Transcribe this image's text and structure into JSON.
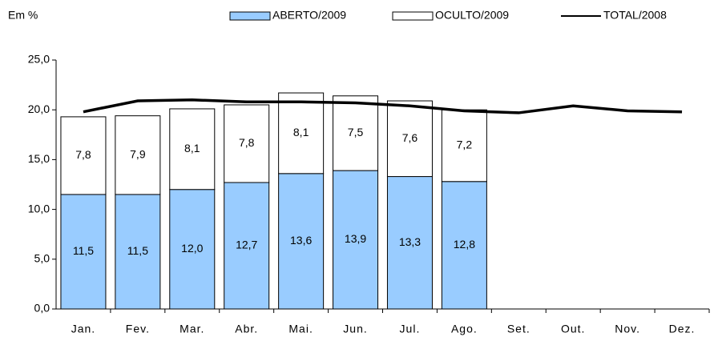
{
  "chart_data": {
    "type": "bar",
    "unit_label": "Em %",
    "categories": [
      "Jan.",
      "Fev.",
      "Mar.",
      "Abr.",
      "Mai.",
      "Jun.",
      "Jul.",
      "Ago.",
      "Set.",
      "Out.",
      "Nov.",
      "Dez."
    ],
    "series": [
      {
        "name": "ABERTO/2009",
        "type": "bar",
        "color": "#99ccff",
        "values": [
          11.5,
          11.5,
          12.0,
          12.7,
          13.6,
          13.9,
          13.3,
          12.8,
          null,
          null,
          null,
          null
        ],
        "value_labels": [
          "11,5",
          "11,5",
          "12,0",
          "12,7",
          "13,6",
          "13,9",
          "13,3",
          "12,8",
          null,
          null,
          null,
          null
        ]
      },
      {
        "name": "OCULTO/2009",
        "type": "bar",
        "color": "#ffffff",
        "values": [
          7.8,
          7.9,
          8.1,
          7.8,
          8.1,
          7.5,
          7.6,
          7.2,
          null,
          null,
          null,
          null
        ],
        "value_labels": [
          "7,8",
          "7,9",
          "8,1",
          "7,8",
          "8,1",
          "7,5",
          "7,6",
          "7,2",
          null,
          null,
          null,
          null
        ]
      },
      {
        "name": "TOTAL/2008",
        "type": "line",
        "color": "#000000",
        "values": [
          19.8,
          20.9,
          21.0,
          20.8,
          20.8,
          20.7,
          20.4,
          19.9,
          19.7,
          20.4,
          19.9,
          19.8
        ]
      }
    ],
    "ylim": [
      0,
      25
    ],
    "yticks": [
      {
        "value": 0,
        "label": "0,0"
      },
      {
        "value": 5,
        "label": "5,0"
      },
      {
        "value": 10,
        "label": "10,0"
      },
      {
        "value": 15,
        "label": "15,0"
      },
      {
        "value": 20,
        "label": "20,0"
      },
      {
        "value": 25,
        "label": "25,0"
      }
    ],
    "stacked": true
  }
}
